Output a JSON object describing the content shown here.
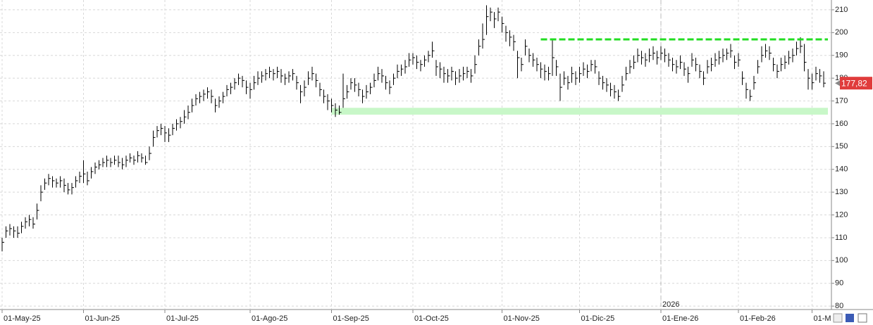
{
  "chart_data": {
    "type": "ohlc",
    "color": "#000000",
    "grid": true,
    "ylim": [
      78.5,
      214.3
    ],
    "yticks": [
      80,
      90,
      100,
      110,
      120,
      130,
      140,
      150,
      160,
      170,
      180,
      190,
      200,
      210
    ],
    "year_label": "2026",
    "last_price": {
      "value": 177.82,
      "label": "177,82",
      "color": "#e03c3c"
    },
    "lines": [
      {
        "value": 197,
        "color": "#22dd22"
      }
    ],
    "zones": [
      {
        "from": 164,
        "to": 167,
        "color": "#c8f7c8"
      }
    ],
    "categories": [
      "01-May-25",
      null,
      null,
      null,
      null,
      null,
      null,
      null,
      null,
      null,
      null,
      null,
      null,
      null,
      null,
      null,
      null,
      null,
      null,
      null,
      null,
      "01-Jun-25",
      null,
      null,
      null,
      null,
      null,
      null,
      null,
      null,
      null,
      null,
      null,
      null,
      null,
      null,
      null,
      null,
      null,
      null,
      null,
      null,
      "01-Jul-25",
      null,
      null,
      null,
      null,
      null,
      null,
      null,
      null,
      null,
      null,
      null,
      null,
      null,
      null,
      null,
      null,
      null,
      null,
      null,
      null,
      null,
      "01-Ago-25",
      null,
      null,
      null,
      null,
      null,
      null,
      null,
      null,
      null,
      null,
      null,
      null,
      null,
      null,
      null,
      null,
      null,
      null,
      null,
      null,
      "01-Sep-25",
      null,
      null,
      null,
      null,
      null,
      null,
      null,
      null,
      null,
      null,
      null,
      null,
      null,
      null,
      null,
      null,
      null,
      null,
      null,
      null,
      "01-Oct-25",
      null,
      null,
      null,
      null,
      null,
      null,
      null,
      null,
      null,
      null,
      null,
      null,
      null,
      null,
      null,
      null,
      null,
      null,
      null,
      null,
      null,
      null,
      "01-Nov-25",
      null,
      null,
      null,
      null,
      null,
      null,
      null,
      null,
      null,
      null,
      null,
      null,
      null,
      null,
      null,
      null,
      null,
      null,
      null,
      "01-Dic-25",
      null,
      null,
      null,
      null,
      null,
      null,
      null,
      null,
      null,
      null,
      null,
      null,
      null,
      null,
      null,
      null,
      null,
      null,
      null,
      null,
      "01-Ene-26",
      null,
      null,
      null,
      null,
      null,
      null,
      null,
      null,
      null,
      null,
      null,
      null,
      null,
      null,
      null,
      null,
      null,
      null,
      null,
      "01-Feb-26",
      null,
      null,
      null,
      null,
      null,
      null,
      null,
      null,
      null,
      null,
      null,
      null,
      null,
      null,
      null,
      null,
      null,
      null,
      "01-M",
      null,
      null,
      null
    ],
    "high": [
      110,
      115,
      116,
      115,
      115,
      117,
      119,
      120,
      119,
      125,
      133,
      136,
      138,
      137,
      136,
      137,
      136,
      134,
      134,
      137,
      139,
      144,
      139,
      141,
      143,
      144,
      145,
      146,
      145,
      146,
      146,
      145,
      146,
      147,
      146,
      148,
      147,
      146,
      150,
      157,
      159,
      160,
      159,
      158,
      160,
      162,
      163,
      166,
      168,
      171,
      173,
      174,
      175,
      176,
      175,
      171,
      172,
      174,
      177,
      178,
      180,
      182,
      181,
      179,
      178,
      181,
      183,
      183,
      184,
      185,
      184,
      185,
      184,
      182,
      183,
      184,
      181,
      177,
      179,
      183,
      185,
      182,
      178,
      175,
      173,
      171,
      169,
      168,
      182,
      177,
      180,
      180,
      178,
      175,
      177,
      178,
      182,
      185,
      184,
      181,
      179,
      182,
      186,
      186,
      188,
      191,
      191,
      190,
      188,
      190,
      192,
      196,
      188,
      187,
      185,
      184,
      185,
      183,
      184,
      185,
      185,
      184,
      190,
      197,
      204,
      212,
      211,
      209,
      211,
      207,
      203,
      201,
      199,
      192,
      189,
      197,
      193,
      191,
      189,
      187,
      186,
      185,
      197,
      188,
      182,
      183,
      181,
      185,
      183,
      185,
      187,
      186,
      188,
      188,
      183,
      181,
      180,
      178,
      177,
      175,
      181,
      185,
      188,
      190,
      193,
      192,
      191,
      193,
      194,
      192,
      194,
      193,
      191,
      189,
      188,
      190,
      187,
      185,
      191,
      189,
      186,
      183,
      188,
      189,
      191,
      192,
      193,
      193,
      195,
      190,
      191,
      183,
      178,
      175,
      181,
      188,
      194,
      195,
      194,
      189,
      186,
      189,
      190,
      192,
      193,
      196,
      198,
      195,
      184,
      182,
      185,
      184,
      183
    ],
    "low": [
      104,
      110,
      111,
      110,
      110,
      112,
      114,
      115,
      114,
      118,
      126,
      131,
      133,
      132,
      132,
      132,
      130,
      129,
      129,
      132,
      134,
      134,
      133,
      136,
      138,
      140,
      141,
      141,
      141,
      142,
      141,
      140,
      141,
      143,
      142,
      143,
      143,
      142,
      144,
      150,
      154,
      155,
      152,
      152,
      155,
      157,
      158,
      160,
      162,
      165,
      168,
      169,
      170,
      171,
      169,
      165,
      167,
      169,
      172,
      173,
      175,
      177,
      176,
      173,
      171,
      175,
      177,
      178,
      179,
      180,
      179,
      180,
      178,
      177,
      178,
      179,
      175,
      169,
      172,
      177,
      179,
      176,
      172,
      169,
      166,
      165,
      163,
      164,
      167,
      171,
      175,
      174,
      172,
      169,
      171,
      173,
      176,
      179,
      178,
      175,
      173,
      177,
      180,
      181,
      182,
      185,
      186,
      184,
      183,
      185,
      187,
      189,
      181,
      180,
      178,
      178,
      179,
      177,
      178,
      179,
      180,
      178,
      182,
      190,
      193,
      199,
      205,
      202,
      205,
      200,
      196,
      194,
      192,
      180,
      183,
      190,
      187,
      185,
      183,
      180,
      179,
      179,
      181,
      181,
      170,
      177,
      175,
      178,
      177,
      178,
      181,
      180,
      183,
      182,
      177,
      175,
      174,
      172,
      171,
      170,
      174,
      179,
      182,
      184,
      187,
      186,
      185,
      187,
      188,
      186,
      188,
      187,
      185,
      183,
      182,
      184,
      181,
      178,
      185,
      183,
      180,
      177,
      182,
      183,
      185,
      186,
      187,
      188,
      189,
      184,
      185,
      177,
      171,
      170,
      175,
      182,
      187,
      189,
      188,
      183,
      180,
      183,
      184,
      186,
      187,
      190,
      191,
      183,
      175,
      175,
      179,
      178,
      176
    ],
    "close": [
      108,
      113,
      114,
      113,
      112,
      115,
      117,
      118,
      116,
      122,
      130,
      134,
      136,
      135,
      134,
      135,
      133,
      131,
      132,
      135,
      137,
      138,
      135,
      139,
      141,
      142,
      143,
      144,
      143,
      144,
      143,
      142,
      144,
      145,
      144,
      146,
      145,
      143,
      147,
      154,
      157,
      158,
      156,
      155,
      158,
      160,
      161,
      163,
      165,
      168,
      171,
      172,
      173,
      174,
      172,
      168,
      170,
      172,
      175,
      176,
      178,
      180,
      179,
      176,
      175,
      178,
      180,
      181,
      182,
      183,
      182,
      183,
      181,
      180,
      181,
      182,
      178,
      174,
      176,
      180,
      182,
      179,
      175,
      172,
      170,
      168,
      166,
      165,
      171,
      174,
      178,
      177,
      175,
      172,
      174,
      176,
      179,
      182,
      181,
      178,
      176,
      180,
      183,
      184,
      185,
      188,
      189,
      187,
      186,
      188,
      190,
      192,
      185,
      184,
      182,
      181,
      183,
      180,
      181,
      182,
      183,
      181,
      186,
      194,
      197,
      207,
      209,
      206,
      209,
      204,
      200,
      198,
      196,
      189,
      186,
      194,
      190,
      188,
      186,
      184,
      183,
      182,
      189,
      185,
      176,
      180,
      178,
      182,
      180,
      182,
      184,
      183,
      186,
      185,
      180,
      178,
      177,
      175,
      174,
      172,
      177,
      182,
      185,
      187,
      190,
      189,
      188,
      190,
      191,
      189,
      191,
      190,
      188,
      186,
      185,
      187,
      184,
      182,
      188,
      186,
      183,
      180,
      185,
      186,
      188,
      189,
      190,
      191,
      192,
      187,
      188,
      180,
      175,
      172,
      178,
      185,
      190,
      192,
      191,
      186,
      183,
      186,
      187,
      189,
      190,
      193,
      194,
      187,
      180,
      178,
      182,
      181,
      177.82
    ]
  }
}
